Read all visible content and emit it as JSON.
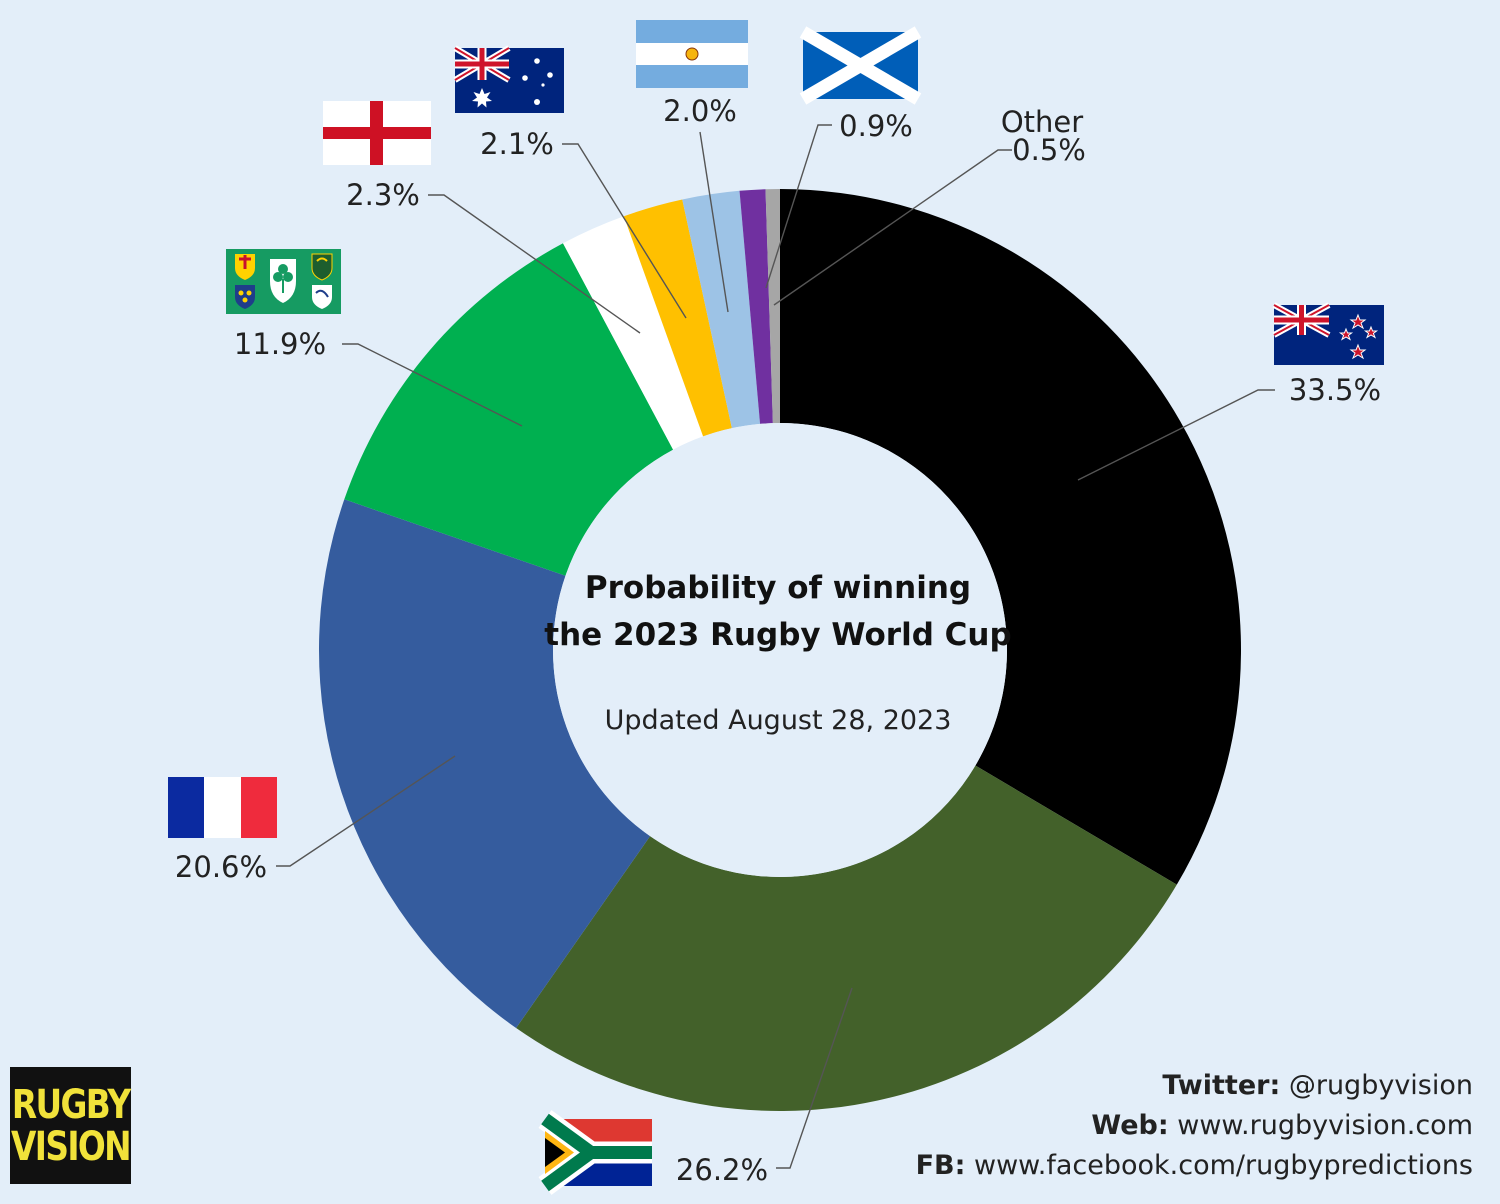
{
  "chart_data": {
    "type": "pie",
    "variant": "donut",
    "title": "Probability of winning the 2023 Rugby World Cup",
    "title_lines": [
      "Probability of winning",
      "the 2023 Rugby World Cup"
    ],
    "subtitle": "Updated August 28, 2023",
    "slices": [
      {
        "value": 33.5,
        "label": "33.5%",
        "color": "#000000",
        "flag": "new-zealand-flag"
      },
      {
        "value": 26.2,
        "label": "26.2%",
        "color": "#43612a",
        "flag": "south-africa-flag"
      },
      {
        "value": 20.6,
        "label": "20.6%",
        "color": "#355c9e",
        "flag": "france-flag"
      },
      {
        "value": 11.9,
        "label": "11.9%",
        "color": "#00b050",
        "flag": "ireland-rugby-flag"
      },
      {
        "value": 2.3,
        "label": "2.3%",
        "color": "#ffffff",
        "flag": "england-flag"
      },
      {
        "value": 2.1,
        "label": "2.1%",
        "color": "#ffc000",
        "flag": "australia-flag"
      },
      {
        "value": 2.0,
        "label": "2.0%",
        "color": "#9dc3e6",
        "flag": "argentina-flag"
      },
      {
        "value": 0.9,
        "label": "0.9%",
        "color": "#7030a0",
        "flag": "scotland-flag"
      },
      {
        "value": 0.5,
        "label": "0.5%",
        "color": "#a6a6a6",
        "name": "Other"
      }
    ]
  },
  "logo": {
    "line1": "RUGBY",
    "line2": "VISION"
  },
  "credits": {
    "twitter_label": "Twitter:",
    "twitter_value": "@rugbyvision",
    "web_label": "Web:",
    "web_value": "www.rugbyvision.com",
    "fb_label": "FB:",
    "fb_value": "www.facebook.com/rugbypredictions"
  },
  "colors": {
    "background": "#e3eef9",
    "logo_bg": "#111111",
    "logo_text": "#f1e23a"
  }
}
